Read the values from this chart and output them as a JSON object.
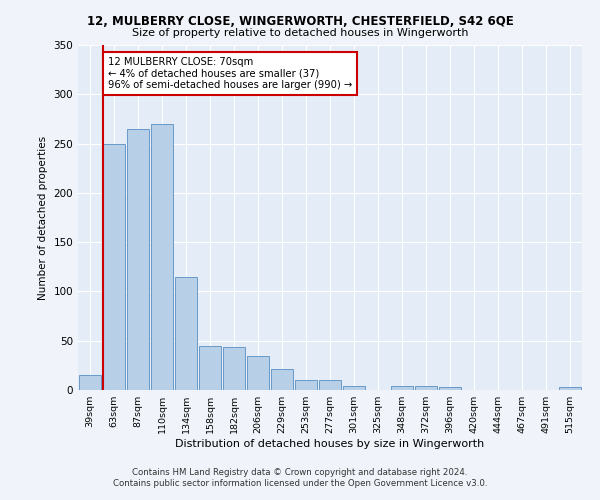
{
  "title1": "12, MULBERRY CLOSE, WINGERWORTH, CHESTERFIELD, S42 6QE",
  "title2": "Size of property relative to detached houses in Wingerworth",
  "xlabel": "Distribution of detached houses by size in Wingerworth",
  "ylabel": "Number of detached properties",
  "categories": [
    "39sqm",
    "63sqm",
    "87sqm",
    "110sqm",
    "134sqm",
    "158sqm",
    "182sqm",
    "206sqm",
    "229sqm",
    "253sqm",
    "277sqm",
    "301sqm",
    "325sqm",
    "348sqm",
    "372sqm",
    "396sqm",
    "420sqm",
    "444sqm",
    "467sqm",
    "491sqm",
    "515sqm"
  ],
  "values": [
    15,
    250,
    265,
    270,
    115,
    45,
    44,
    35,
    21,
    10,
    10,
    4,
    0,
    4,
    4,
    3,
    0,
    0,
    0,
    0,
    3
  ],
  "bar_color": "#b8cfe8",
  "bar_edge_color": "#6899c8",
  "vline_color": "#cc0000",
  "annotation_text": "12 MULBERRY CLOSE: 70sqm\n← 4% of detached houses are smaller (37)\n96% of semi-detached houses are larger (990) →",
  "annotation_box_color": "#ffffff",
  "annotation_box_edge_color": "#cc0000",
  "ylim": [
    0,
    350
  ],
  "yticks": [
    0,
    50,
    100,
    150,
    200,
    250,
    300,
    350
  ],
  "footer1": "Contains HM Land Registry data © Crown copyright and database right 2024.",
  "footer2": "Contains public sector information licensed under the Open Government Licence v3.0.",
  "bg_color": "#f0f4fa",
  "plot_bg_color": "#e4ecf7"
}
